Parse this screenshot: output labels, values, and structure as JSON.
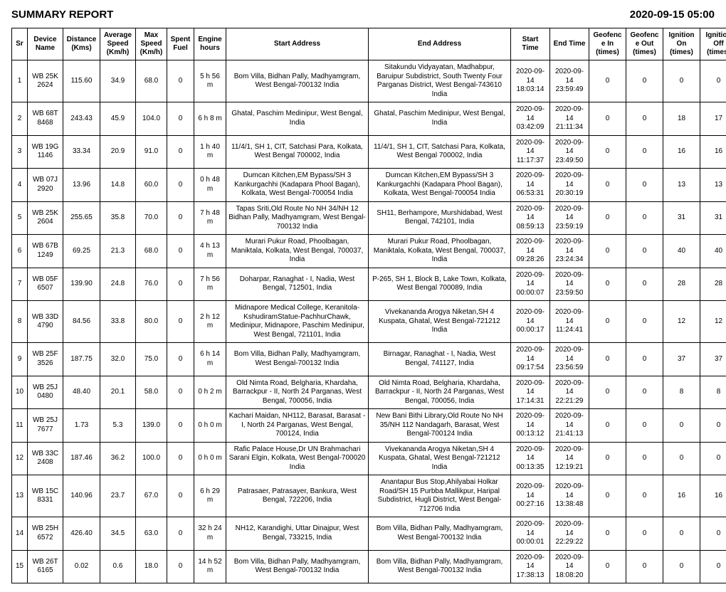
{
  "header": {
    "title": "SUMMARY REPORT",
    "datetime": "2020-09-15 05:00"
  },
  "columns": [
    "Sr",
    "Device Name",
    "Distance (Kms)",
    "Average Speed (Km/h)",
    "Max Speed (Km/h)",
    "Spent Fuel",
    "Engine hours",
    "Start Address",
    "End Address",
    "Start Time",
    "End Time",
    "Geofence In (times)",
    "Geofence Out (times)",
    "Ignition On (times)",
    "Ignition Off (times)"
  ],
  "rows": [
    {
      "sr": "1",
      "dev": "WB 25K 2624",
      "dist": "115.60",
      "avg": "34.9",
      "max": "68.0",
      "fuel": "0",
      "eng": "5 h 56 m",
      "start": "Bom Villa, Bidhan Pally, Madhyamgram, West Bengal-700132 India",
      "end": "Sitakundu Vidyayatan, Madhabpur, Baruipur Subdistrict, South Twenty Four Parganas District, West Bengal-743610 India",
      "st": "2020-09-14 18:03:14",
      "et": "2020-09-14 23:59:49",
      "gin": "0",
      "gout": "0",
      "ion": "0",
      "ioff": "0"
    },
    {
      "sr": "2",
      "dev": "WB 68T 8468",
      "dist": "243.43",
      "avg": "45.9",
      "max": "104.0",
      "fuel": "0",
      "eng": "6 h 8 m",
      "start": "Ghatal, Paschim Medinipur, West Bengal, India",
      "end": "Ghatal, Paschim Medinipur, West Bengal, India",
      "st": "2020-09-14 03:42:09",
      "et": "2020-09-14 21:11:34",
      "gin": "0",
      "gout": "0",
      "ion": "18",
      "ioff": "17"
    },
    {
      "sr": "3",
      "dev": "WB 19G 1146",
      "dist": "33.34",
      "avg": "20.9",
      "max": "91.0",
      "fuel": "0",
      "eng": "1 h 40 m",
      "start": "11/4/1, SH 1, CIT, Satchasi Para, Kolkata, West Bengal 700002, India",
      "end": "11/4/1, SH 1, CIT, Satchasi Para, Kolkata, West Bengal 700002, India",
      "st": "2020-09-14 11:17:37",
      "et": "2020-09-14 23:49:50",
      "gin": "0",
      "gout": "0",
      "ion": "16",
      "ioff": "16"
    },
    {
      "sr": "4",
      "dev": "WB 07J 2920",
      "dist": "13.96",
      "avg": "14.8",
      "max": "60.0",
      "fuel": "0",
      "eng": "0 h 48 m",
      "start": "Dumcan Kitchen,EM Bypass/SH 3 Kankurgachhi (Kadapara Phool Bagan), Kolkata, West Bengal-700054 India",
      "end": "Dumcan Kitchen,EM Bypass/SH 3 Kankurgachhi (Kadapara Phool Bagan), Kolkata, West Bengal-700054 India",
      "st": "2020-09-14 06:53:31",
      "et": "2020-09-14 20:30:19",
      "gin": "0",
      "gout": "0",
      "ion": "13",
      "ioff": "13"
    },
    {
      "sr": "5",
      "dev": "WB 25K 2604",
      "dist": "255.65",
      "avg": "35.8",
      "max": "70.0",
      "fuel": "0",
      "eng": "7 h 48 m",
      "start": "Tapas Sriti,Old Route No NH 34/NH 12 Bidhan Pally, Madhyamgram, West Bengal-700132 India",
      "end": "SH11, Berhampore, Murshidabad, West Bengal, 742101, India",
      "st": "2020-09-14 08:59:13",
      "et": "2020-09-14 23:59:19",
      "gin": "0",
      "gout": "0",
      "ion": "31",
      "ioff": "31"
    },
    {
      "sr": "6",
      "dev": "WB 67B 1249",
      "dist": "69.25",
      "avg": "21.3",
      "max": "68.0",
      "fuel": "0",
      "eng": "4 h 13 m",
      "start": "Murari Pukur Road, Phoolbagan, Maniktala, Kolkata, West Bengal, 700037, India",
      "end": "Murari Pukur Road, Phoolbagan, Maniktala, Kolkata, West Bengal, 700037, India",
      "st": "2020-09-14 09:28:26",
      "et": "2020-09-14 23:24:34",
      "gin": "0",
      "gout": "0",
      "ion": "40",
      "ioff": "40"
    },
    {
      "sr": "7",
      "dev": "WB 05F 6507",
      "dist": "139.90",
      "avg": "24.8",
      "max": "76.0",
      "fuel": "0",
      "eng": "7 h 56 m",
      "start": "Doharpar, Ranaghat - I, Nadia, West Bengal, 712501, India",
      "end": "P-265, SH 1, Block B, Lake Town, Kolkata, West Bengal 700089, India",
      "st": "2020-09-14 00:00:07",
      "et": "2020-09-14 23:59:50",
      "gin": "0",
      "gout": "0",
      "ion": "28",
      "ioff": "28"
    },
    {
      "sr": "8",
      "dev": "WB 33D 4790",
      "dist": "84.56",
      "avg": "33.8",
      "max": "80.0",
      "fuel": "0",
      "eng": "2 h 12 m",
      "start": "Midnapore Medical College, Keranitola-KshudiramStatue-PachhurChawk, Medinipur, Midnapore, Paschim Medinipur, West Bengal, 721101, India",
      "end": "Vivekananda Arogya Niketan,SH 4 Kuspata, Ghatal, West Bengal-721212 India",
      "st": "2020-09-14 00:00:17",
      "et": "2020-09-14 11:24:41",
      "gin": "0",
      "gout": "0",
      "ion": "12",
      "ioff": "12"
    },
    {
      "sr": "9",
      "dev": "WB 25F 3526",
      "dist": "187.75",
      "avg": "32.0",
      "max": "75.0",
      "fuel": "0",
      "eng": "6 h 14 m",
      "start": "Bom Villa, Bidhan Pally, Madhyamgram, West Bengal-700132 India",
      "end": "Birnagar, Ranaghat - I, Nadia, West Bengal, 741127, India",
      "st": "2020-09-14 09:17:54",
      "et": "2020-09-14 23:56:59",
      "gin": "0",
      "gout": "0",
      "ion": "37",
      "ioff": "37"
    },
    {
      "sr": "10",
      "dev": "WB 25J 0480",
      "dist": "48.40",
      "avg": "20.1",
      "max": "58.0",
      "fuel": "0",
      "eng": "0 h 2 m",
      "start": "Old Nimta Road, Belgharia, Khardaha, Barrackpur - II, North 24 Parganas, West Bengal, 700056, India",
      "end": "Old Nimta Road, Belgharia, Khardaha, Barrackpur - II, North 24 Parganas, West Bengal, 700056, India",
      "st": "2020-09-14 17:14:31",
      "et": "2020-09-14 22:21:29",
      "gin": "0",
      "gout": "0",
      "ion": "8",
      "ioff": "8"
    },
    {
      "sr": "11",
      "dev": "WB 25J 7677",
      "dist": "1.73",
      "avg": "5.3",
      "max": "139.0",
      "fuel": "0",
      "eng": "0 h 0 m",
      "start": "Kachari Maidan, NH112, Barasat, Barasat - I, North 24 Parganas, West Bengal, 700124, India",
      "end": "New Bani Bithi Library,Old Route No NH 35/NH 112 Nandagarh, Barasat, West Bengal-700124 India",
      "st": "2020-09-14 00:13:12",
      "et": "2020-09-14 21:41:13",
      "gin": "0",
      "gout": "0",
      "ion": "0",
      "ioff": "0"
    },
    {
      "sr": "12",
      "dev": "WB 33C 2408",
      "dist": "187.46",
      "avg": "36.2",
      "max": "100.0",
      "fuel": "0",
      "eng": "0 h 0 m",
      "start": "Rafic Palace House,Dr UN Brahmachari Sarani Elgin, Kolkata, West Bengal-700020 India",
      "end": "Vivekananda Arogya Niketan,SH 4 Kuspata, Ghatal, West Bengal-721212 India",
      "st": "2020-09-14 00:13:35",
      "et": "2020-09-14 12:19:21",
      "gin": "0",
      "gout": "0",
      "ion": "0",
      "ioff": "0"
    },
    {
      "sr": "13",
      "dev": "WB 15C 8331",
      "dist": "140.96",
      "avg": "23.7",
      "max": "67.0",
      "fuel": "0",
      "eng": "6 h 29 m",
      "start": "Patrasaer, Patrasayer, Bankura, West Bengal, 722206, India",
      "end": "Anantapur Bus Stop,Ahilyabai Holkar Road/SH 15 Purbba Mallikpur, Haripal Subdistrict, Hugli District, West Bengal-712706 India",
      "st": "2020-09-14 00:27:16",
      "et": "2020-09-14 13:38:48",
      "gin": "0",
      "gout": "0",
      "ion": "16",
      "ioff": "16"
    },
    {
      "sr": "14",
      "dev": "WB 25H 6572",
      "dist": "426.40",
      "avg": "34.5",
      "max": "63.0",
      "fuel": "0",
      "eng": "32 h 24 m",
      "start": "NH12, Karandighi, Uttar Dinajpur, West Bengal, 733215, India",
      "end": "Bom Villa, Bidhan Pally, Madhyamgram, West Bengal-700132 India",
      "st": "2020-09-14 00:00:01",
      "et": "2020-09-14 22:29:22",
      "gin": "0",
      "gout": "0",
      "ion": "0",
      "ioff": "0"
    },
    {
      "sr": "15",
      "dev": "WB 26T 6165",
      "dist": "0.02",
      "avg": "0.6",
      "max": "18.0",
      "fuel": "0",
      "eng": "14 h 52 m",
      "start": "Bom Villa, Bidhan Pally, Madhyamgram, West Bengal-700132 India",
      "end": "Bom Villa, Bidhan Pally, Madhyamgram, West Bengal-700132 India",
      "st": "2020-09-14 17:38:13",
      "et": "2020-09-14 18:08:20",
      "gin": "0",
      "gout": "0",
      "ion": "0",
      "ioff": "0"
    }
  ]
}
